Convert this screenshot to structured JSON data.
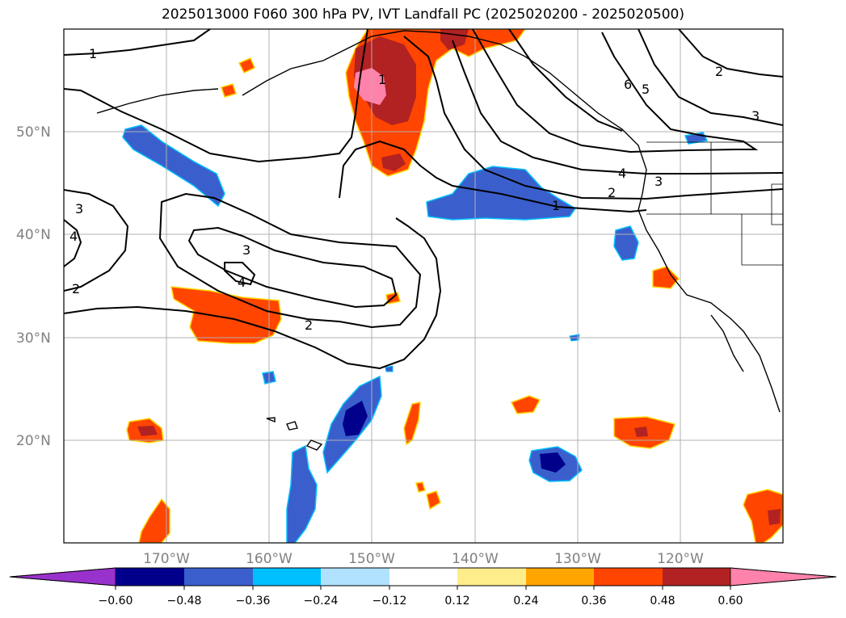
{
  "title": "2025013000 F060 300 hPa PV, IVT Landfall PC (2025020200 - 2025020500)",
  "map": {
    "lat_labels": [
      "50°N",
      "40°N",
      "30°N",
      "20°N"
    ],
    "lon_labels": [
      "170°W",
      "160°W",
      "150°W",
      "140°W",
      "130°W",
      "120°W"
    ],
    "contour_labels": [
      "1",
      "1",
      "1",
      "2",
      "3",
      "2",
      "3",
      "4",
      "5",
      "6",
      "4",
      "3",
      "2",
      "1",
      "3",
      "4",
      "2",
      "3",
      "2",
      "1"
    ]
  },
  "colorbar": {
    "tick_labels": [
      "−0.60",
      "−0.48",
      "−0.36",
      "−0.24",
      "−0.12",
      "0.12",
      "0.24",
      "0.36",
      "0.48",
      "0.60"
    ],
    "colors": [
      "#9932CC",
      "#00008B",
      "#3A5FCD",
      "#00BFFF",
      "#B0E2FF",
      "#FFFFFF",
      "#FFEC8B",
      "#FFA500",
      "#FF4500",
      "#B22222",
      "#FF82AB"
    ]
  }
}
